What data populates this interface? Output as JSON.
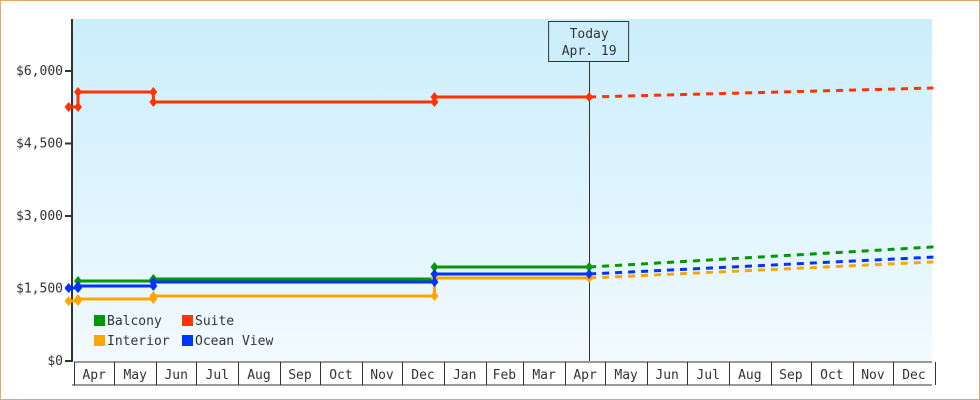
{
  "chart_data": {
    "type": "line",
    "title": "",
    "xlabel": "",
    "ylabel": "",
    "ylim": [
      0,
      7000
    ],
    "y_ticks": [
      "$0",
      "$1,500",
      "$3,000",
      "$4,500",
      "$6,000"
    ],
    "y_tick_values": [
      0,
      1500,
      3000,
      4500,
      6000
    ],
    "x_months": [
      "Apr",
      "May",
      "Jun",
      "Jul",
      "Aug",
      "Sep",
      "Oct",
      "Nov",
      "Dec",
      "Jan",
      "Feb",
      "Mar",
      "Apr",
      "May",
      "Jun",
      "Jul",
      "Aug",
      "Sep",
      "Oct",
      "Nov",
      "Dec"
    ],
    "today": {
      "label": "Today",
      "date_label": "Apr. 19",
      "date": "Apr 19"
    },
    "legend_position": "bottom-left",
    "series": [
      {
        "name": "Balcony",
        "color": "#009900",
        "history": [
          [
            "Mar 28",
            1510
          ],
          [
            "Apr 4",
            1510
          ],
          [
            "Apr 4",
            1655
          ],
          [
            "May 30",
            1655
          ],
          [
            "May 30",
            1697
          ],
          [
            "Dec 25",
            1697
          ],
          [
            "Dec 25",
            1945
          ],
          [
            "Apr 19",
            1945
          ]
        ],
        "forecast": [
          [
            "Apr 19",
            1945
          ],
          [
            "Dec 31",
            2360
          ]
        ]
      },
      {
        "name": "Suite",
        "color": "#ff3300",
        "history": [
          [
            "Mar 28",
            5255
          ],
          [
            "Apr 4",
            5255
          ],
          [
            "Apr 4",
            5566
          ],
          [
            "May 30",
            5566
          ],
          [
            "May 30",
            5359
          ],
          [
            "Dec 25",
            5359
          ],
          [
            "Dec 25",
            5462
          ],
          [
            "Apr 19",
            5462
          ]
        ],
        "forecast": [
          [
            "Apr 19",
            5462
          ],
          [
            "Dec 31",
            5649
          ]
        ]
      },
      {
        "name": "Interior",
        "color": "#ffa500",
        "history": [
          [
            "Mar 28",
            1241
          ],
          [
            "Apr 4",
            1241
          ],
          [
            "Apr 4",
            1283
          ],
          [
            "May 30",
            1283
          ],
          [
            "May 30",
            1345
          ],
          [
            "Dec 25",
            1345
          ],
          [
            "Dec 25",
            1717
          ],
          [
            "Apr 19",
            1717
          ]
        ],
        "forecast": [
          [
            "Apr 19",
            1717
          ],
          [
            "Dec 31",
            2050
          ]
        ]
      },
      {
        "name": "Ocean View",
        "color": "#0033ff",
        "history": [
          [
            "Mar 28",
            1510
          ],
          [
            "Apr 4",
            1510
          ],
          [
            "Apr 4",
            1552
          ],
          [
            "May 30",
            1552
          ],
          [
            "May 30",
            1635
          ],
          [
            "Dec 25",
            1635
          ],
          [
            "Dec 25",
            1800
          ],
          [
            "Apr 19",
            1800
          ]
        ],
        "forecast": [
          [
            "Apr 19",
            1800
          ],
          [
            "Dec 31",
            2150
          ]
        ]
      }
    ]
  }
}
